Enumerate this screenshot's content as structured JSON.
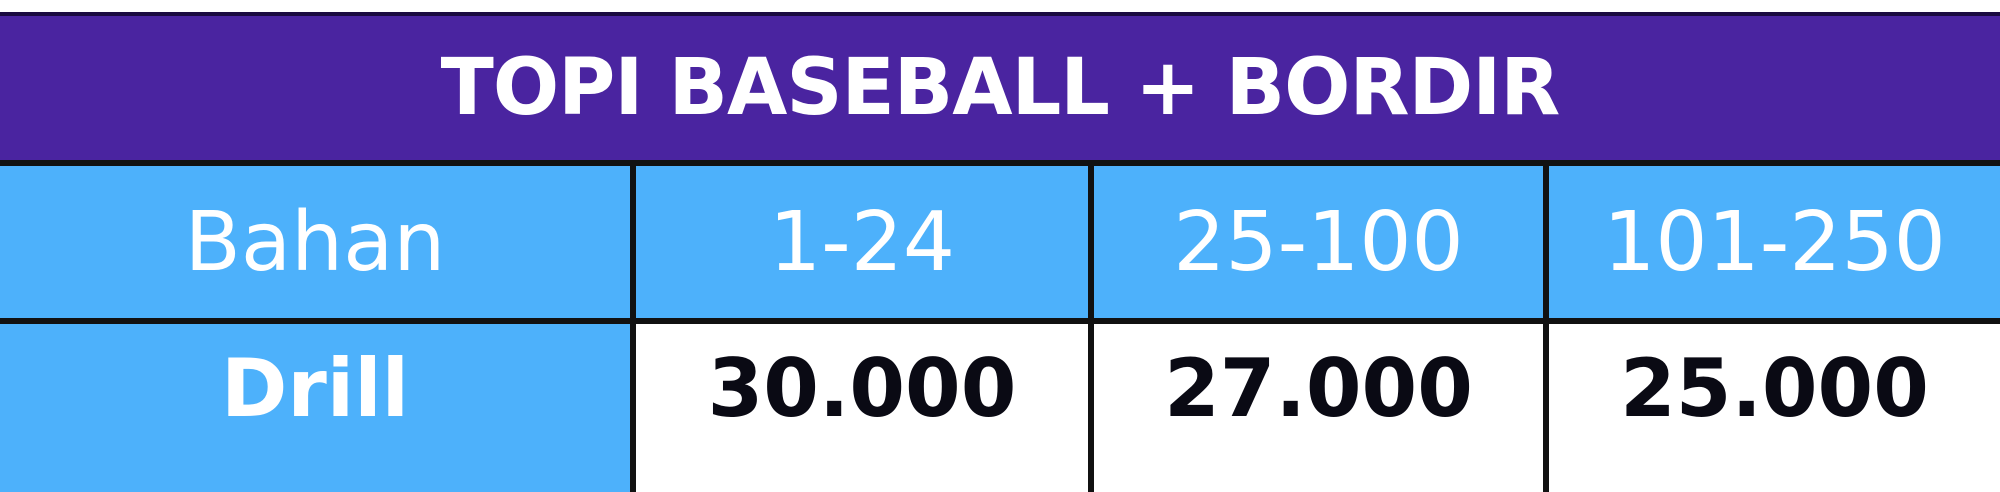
{
  "title": "TOPI BASEBALL + BORDIR",
  "colors": {
    "title_bg": "#4a24a0",
    "header_bg": "#4db1fb",
    "border": "#111111",
    "price_text": "#0a0a14"
  },
  "table": {
    "headers": [
      "Bahan",
      "1-24",
      "25-100",
      "101-250"
    ],
    "rows": [
      {
        "label": "Drill",
        "prices": [
          "30.000",
          "27.000",
          "25.000"
        ]
      }
    ]
  }
}
